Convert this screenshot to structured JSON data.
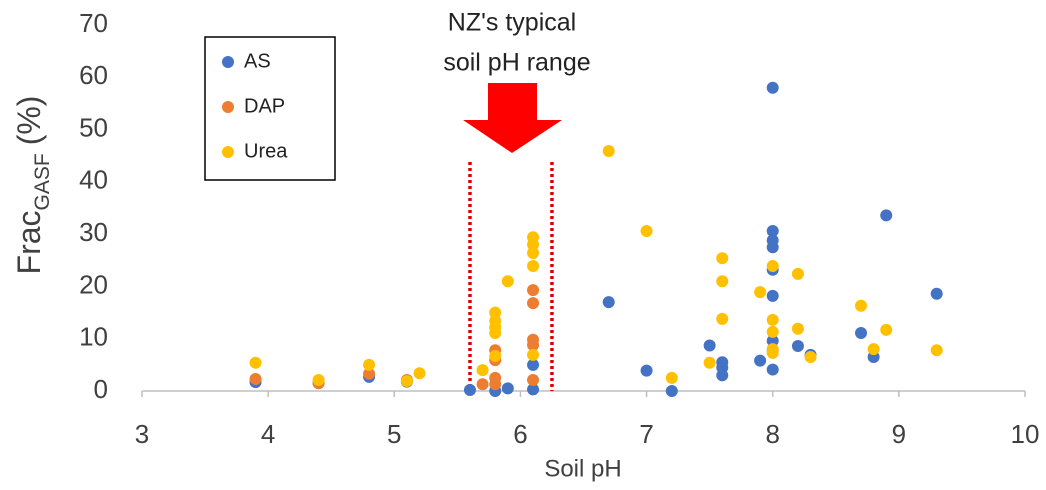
{
  "chart_data": {
    "type": "scatter",
    "xlabel": "Soil pH",
    "ylabel": "Frac",
    "ylabel_subscript": "GASF",
    "ylabel_suffix": "(%)",
    "xlim": [
      3,
      10
    ],
    "xticks": [
      3,
      4,
      5,
      6,
      7,
      8,
      9,
      10
    ],
    "ylim": [
      0,
      70
    ],
    "yticks": [
      0,
      10,
      20,
      30,
      40,
      50,
      60,
      70
    ],
    "grid": false,
    "legend": "upper left",
    "annotation": [
      "NZ's typical",
      "soil pH range"
    ],
    "range_lines": [
      5.6,
      6.25
    ],
    "range_color": "#e00000",
    "series": [
      {
        "name": "AS",
        "color": "#4472c4",
        "x": [
          3.9,
          4.4,
          4.8,
          5.1,
          5.6,
          5.8,
          5.9,
          6.1,
          6.1,
          6.7,
          7.0,
          7.2,
          7.5,
          7.6,
          7.6,
          7.6,
          7.9,
          8.0,
          8.0,
          8.0,
          8.0,
          8.0,
          8.0,
          8.0,
          8.0,
          8.0,
          8.2,
          8.3,
          8.7,
          8.8,
          8.9,
          9.3
        ],
        "values": [
          1.7,
          1.5,
          2.7,
          1.8,
          0.2,
          0,
          0.5,
          5.0,
          0.3,
          17.0,
          3.9,
          0,
          8.7,
          5.5,
          4.5,
          3.0,
          5.8,
          58.0,
          30.6,
          28.8,
          27.5,
          23.2,
          18.2,
          9.6,
          7.8,
          4.1,
          8.6,
          6.9,
          11.1,
          6.5,
          33.6,
          18.6
        ]
      },
      {
        "name": "DAP",
        "color": "#ed7d31",
        "x": [
          3.9,
          4.4,
          4.8,
          5.1,
          5.7,
          5.8,
          5.8,
          5.8,
          5.8,
          6.1,
          6.1,
          6.1,
          6.1,
          6.1
        ],
        "values": [
          2.3,
          1.5,
          3.3,
          2.1,
          1.3,
          7.8,
          5.9,
          2.5,
          1.3,
          19.3,
          16.8,
          9.8,
          8.8,
          2.1
        ]
      },
      {
        "name": "Urea",
        "color": "#ffc000",
        "x": [
          3.9,
          4.4,
          4.8,
          5.1,
          5.2,
          5.7,
          5.8,
          5.8,
          5.8,
          5.8,
          5.8,
          5.9,
          6.1,
          6.1,
          6.1,
          6.1,
          6.1,
          6.7,
          7.0,
          7.2,
          7.5,
          7.6,
          7.6,
          7.6,
          7.9,
          8.0,
          8.0,
          8.0,
          8.0,
          8.0,
          8.2,
          8.2,
          8.3,
          8.7,
          8.8,
          8.9,
          9.3
        ],
        "values": [
          5.4,
          2.1,
          5.0,
          1.9,
          3.4,
          4.0,
          15.0,
          13.4,
          12.2,
          11.1,
          6.7,
          21.0,
          29.4,
          28.0,
          26.4,
          23.9,
          6.9,
          45.9,
          30.6,
          2.5,
          5.4,
          25.4,
          21.0,
          13.8,
          18.9,
          23.9,
          13.6,
          11.3,
          8.0,
          7.3,
          22.4,
          11.9,
          6.5,
          16.3,
          8.0,
          11.7,
          7.8
        ]
      }
    ]
  }
}
